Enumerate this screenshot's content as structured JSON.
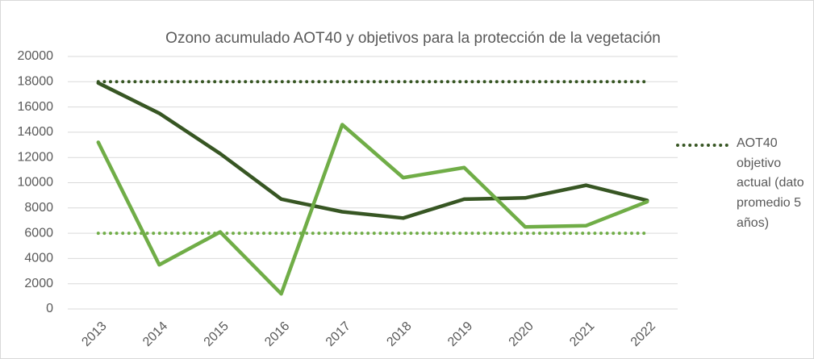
{
  "chart_data": {
    "type": "line",
    "title": "Ozono acumulado AOT40  y objetivos para la protección de la vegetación",
    "categories": [
      "2013",
      "2014",
      "2015",
      "2016",
      "2017",
      "2018",
      "2019",
      "2020",
      "2021",
      "2022"
    ],
    "series": [
      {
        "color": "#375623",
        "style": "solid",
        "values": [
          17900,
          15500,
          12300,
          8700,
          7700,
          7200,
          8700,
          8800,
          9800,
          8600
        ]
      },
      {
        "color": "#70ad47",
        "style": "solid",
        "values": [
          13200,
          3500,
          6100,
          1200,
          14600,
          10400,
          11200,
          6500,
          6600,
          8500
        ]
      },
      {
        "name": "AOT40 objetivo actual (dato promedio 5 años)",
        "color": "#375623",
        "style": "dotted",
        "values": [
          18000,
          18000,
          18000,
          18000,
          18000,
          18000,
          18000,
          18000,
          18000,
          18000
        ]
      },
      {
        "color": "#70ad47",
        "style": "dotted",
        "values": [
          6000,
          6000,
          6000,
          6000,
          6000,
          6000,
          6000,
          6000,
          6000,
          6000
        ]
      }
    ],
    "ylim": [
      0,
      20000
    ],
    "yticks": [
      0,
      2000,
      4000,
      6000,
      8000,
      10000,
      12000,
      14000,
      16000,
      18000,
      20000
    ],
    "grid": true,
    "legend": "right"
  }
}
